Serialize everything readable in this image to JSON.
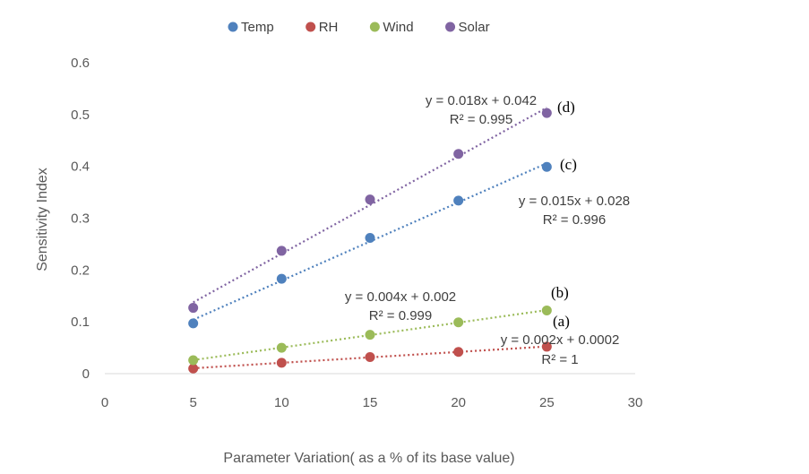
{
  "chart_data": {
    "type": "scatter",
    "title": "",
    "xlabel": "Parameter Variation( as a % of  its base value)",
    "ylabel": "Sensitivity Index",
    "xlim": [
      0,
      30
    ],
    "ylim": [
      0,
      0.6
    ],
    "x_ticks": [
      "0",
      "5",
      "10",
      "15",
      "20",
      "25",
      "30"
    ],
    "y_ticks": [
      "0",
      "0.1",
      "0.2",
      "0.3",
      "0.4",
      "0.5",
      "0.6"
    ],
    "grid": false,
    "legend_position": "top",
    "x": [
      5,
      10,
      15,
      20,
      25
    ],
    "series": [
      {
        "name": "Temp",
        "color": "#4F81BD",
        "values": [
          0.097,
          0.183,
          0.262,
          0.334,
          0.399
        ],
        "trendline": "dotted"
      },
      {
        "name": "RH",
        "color": "#C0504D",
        "values": [
          0.01,
          0.021,
          0.032,
          0.042,
          0.052
        ],
        "trendline": "dotted"
      },
      {
        "name": "Wind",
        "color": "#9BBB59",
        "values": [
          0.026,
          0.05,
          0.075,
          0.099,
          0.122
        ],
        "trendline": "dotted"
      },
      {
        "name": "Solar",
        "color": "#8064A2",
        "values": [
          0.127,
          0.237,
          0.336,
          0.424,
          0.503
        ],
        "trendline": "dotted"
      }
    ],
    "annotations": {
      "solar_eq": "y = 0.018x + 0.042",
      "solar_r2": "R² = 0.995",
      "solar_tag": "(d)",
      "temp_eq": "y = 0.015x + 0.028",
      "temp_r2": "R² = 0.996",
      "temp_tag": "(c)",
      "wind_eq": "y = 0.004x + 0.002",
      "wind_r2": "R² = 0.999",
      "wind_tag": "(b)",
      "rh_eq": "y = 0.002x + 0.0002",
      "rh_r2": "R² = 1",
      "rh_tag": "(a)"
    }
  }
}
